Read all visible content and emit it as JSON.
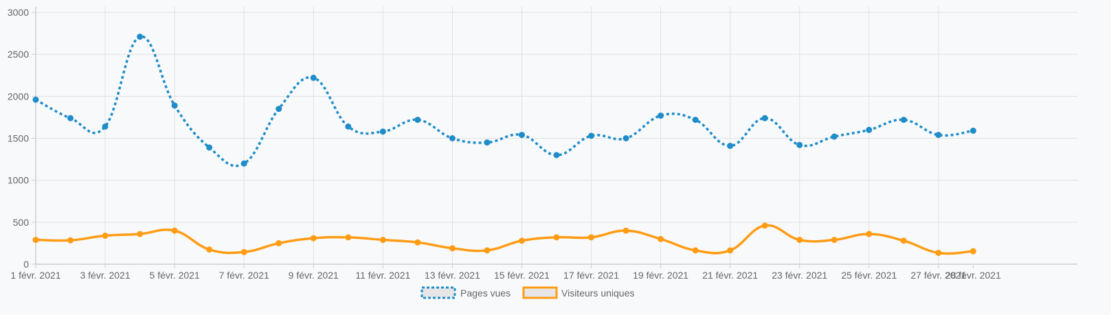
{
  "chart_data": {
    "type": "line",
    "x": [
      "1 févr. 2021",
      "2 févr. 2021",
      "3 févr. 2021",
      "4 févr. 2021",
      "5 févr. 2021",
      "6 févr. 2021",
      "7 févr. 2021",
      "8 févr. 2021",
      "9 févr. 2021",
      "10 févr. 2021",
      "11 févr. 2021",
      "12 févr. 2021",
      "13 févr. 2021",
      "14 févr. 2021",
      "15 févr. 2021",
      "16 févr. 2021",
      "17 févr. 2021",
      "18 févr. 2021",
      "19 févr. 2021",
      "20 févr. 2021",
      "21 févr. 2021",
      "22 févr. 2021",
      "23 févr. 2021",
      "24 févr. 2021",
      "25 févr. 2021",
      "26 févr. 2021",
      "27 févr. 2021",
      "28 févr. 2021"
    ],
    "x_tick_labels": [
      "1 févr. 2021",
      "3 févr. 2021",
      "5 févr. 2021",
      "7 févr. 2021",
      "9 févr. 2021",
      "11 févr. 2021",
      "13 févr. 2021",
      "15 févr. 2021",
      "17 févr. 2021",
      "19 févr. 2021",
      "21 févr. 2021",
      "23 févr. 2021",
      "25 févr. 2021",
      "27 févr. 2021",
      "28 févr. 2021"
    ],
    "y_ticks": [
      0,
      500,
      1000,
      1500,
      2000,
      2500,
      3000
    ],
    "ylim": [
      0,
      3000
    ],
    "grid": true,
    "legend_position": "bottom",
    "series": [
      {
        "name": "Pages vues",
        "color": "#1f8dc9",
        "line_style": "dotted",
        "values": [
          1960,
          1740,
          1640,
          2710,
          1890,
          1390,
          1200,
          1850,
          2220,
          1640,
          1580,
          1720,
          1500,
          1450,
          1540,
          1300,
          1530,
          1500,
          1770,
          1720,
          1410,
          1740,
          1420,
          1520,
          1600,
          1720,
          1540,
          1590
        ]
      },
      {
        "name": "Visiteurs uniques",
        "color": "#ff9c14",
        "line_style": "solid",
        "values": [
          290,
          285,
          340,
          360,
          400,
          175,
          145,
          250,
          310,
          320,
          290,
          260,
          190,
          165,
          280,
          320,
          320,
          400,
          300,
          165,
          165,
          460,
          290,
          290,
          360,
          280,
          135,
          155
        ]
      }
    ]
  }
}
